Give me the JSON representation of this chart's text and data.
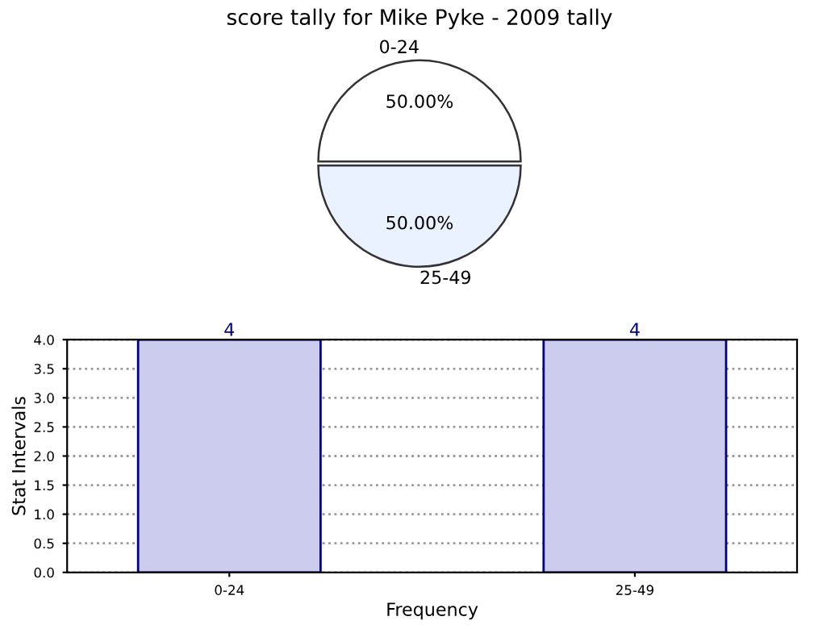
{
  "chart_data": [
    {
      "type": "pie",
      "title": "score tally for Mike Pyke - 2009 tally",
      "categories": [
        "0-24",
        "25-49"
      ],
      "values": [
        50,
        50
      ],
      "value_labels": [
        "50.00%",
        "50.00%"
      ],
      "colors": [
        "#ffffff",
        "#eaf1ff"
      ]
    },
    {
      "type": "bar",
      "categories": [
        "0-24",
        "25-49"
      ],
      "values": [
        4,
        4
      ],
      "color": "#ccccee",
      "xlabel": "Frequency",
      "ylabel": "Stat Intervals",
      "ylim": [
        0,
        4
      ],
      "yticks": [
        {
          "value": 0,
          "label": "0.0"
        },
        {
          "value": 0.5,
          "label": "0.5"
        },
        {
          "value": 1,
          "label": "1.0"
        },
        {
          "value": 1.5,
          "label": "1.5"
        },
        {
          "value": 2,
          "label": "2.0"
        },
        {
          "value": 2.5,
          "label": "2.5"
        },
        {
          "value": 3,
          "label": "3.0"
        },
        {
          "value": 3.5,
          "label": "3.5"
        },
        {
          "value": 4,
          "label": "4.0"
        }
      ],
      "grid": true,
      "data_labels": true
    }
  ]
}
